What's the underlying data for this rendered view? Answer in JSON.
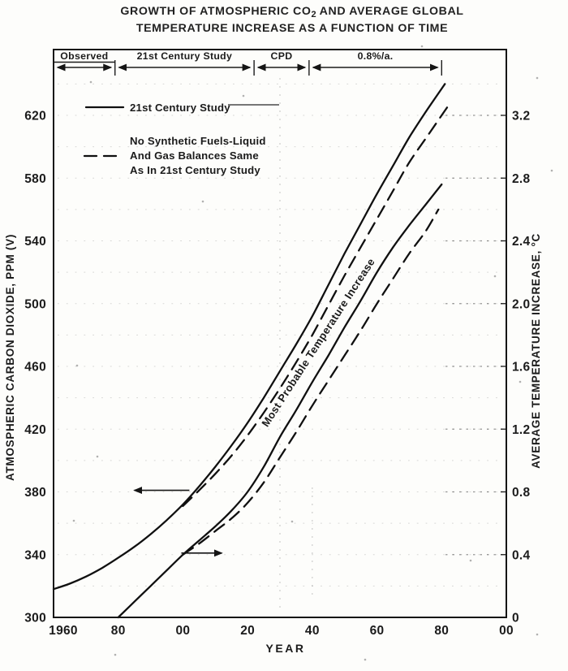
{
  "title": {
    "part1": "GROWTH OF ATMOSPHERIC CO",
    "sub": "2",
    "part2": " AND AVERAGE GLOBAL",
    "line2": "TEMPERATURE INCREASE AS A FUNCTION OF TIME"
  },
  "phase_bar": {
    "segments": [
      {
        "label": "Observed",
        "from": 1960,
        "to": 1979,
        "underline": true
      },
      {
        "label": "21st Century Study",
        "from": 1979,
        "to": 2022,
        "underline": false
      },
      {
        "label": "CPD",
        "from": 2022,
        "to": 2039,
        "underline": false
      },
      {
        "label": "0.8%/a.",
        "from": 2039,
        "to": 2080,
        "underline": false
      }
    ]
  },
  "legend": {
    "items": [
      {
        "line_style": "solid",
        "labels": [
          "21st Century Study"
        ]
      },
      {
        "line_style": "dashed",
        "labels": [
          "No Synthetic Fuels-Liquid",
          "And Gas Balances Same",
          "As In 21st Century Study"
        ]
      }
    ]
  },
  "chart_data": {
    "type": "line",
    "title": "GROWTH OF ATMOSPHERIC CO2 AND AVERAGE GLOBAL TEMPERATURE INCREASE AS A FUNCTION OF TIME",
    "grid": "dotted-scan",
    "x_axis": {
      "label": "YEAR",
      "min": 1960,
      "max": 2100,
      "tick_values": [
        1960,
        1980,
        2000,
        2020,
        2040,
        2060,
        2080,
        2100
      ],
      "tick_labels": [
        "1960",
        "80",
        "00",
        "20",
        "40",
        "60",
        "80",
        "00"
      ]
    },
    "y_axis_left": {
      "label": "ATMOSPHERIC CARBON DIOXIDE, PPM (V)",
      "min": 300,
      "max": 660,
      "tick_values": [
        300,
        340,
        380,
        420,
        460,
        500,
        540,
        580,
        620
      ]
    },
    "y_axis_right": {
      "label": "AVERAGE TEMPERATURE INCREASE, °C",
      "min": 0,
      "max": 3.6,
      "tick_values": [
        0,
        0.4,
        0.8,
        1.2,
        1.6,
        2.0,
        2.4,
        2.8,
        3.2
      ]
    },
    "series": [
      {
        "name": "Atmospheric CO2 — 21st Century Study",
        "axis": "left",
        "style": "solid",
        "points": [
          [
            1960,
            318
          ],
          [
            1965,
            321.5
          ],
          [
            1970,
            326
          ],
          [
            1975,
            331.5
          ],
          [
            1980,
            338
          ],
          [
            1985,
            345
          ],
          [
            1990,
            353
          ],
          [
            1995,
            362
          ],
          [
            2000,
            372
          ],
          [
            2005,
            383.5
          ],
          [
            2010,
            396
          ],
          [
            2015,
            409.5
          ],
          [
            2020,
            424
          ],
          [
            2025,
            440
          ],
          [
            2030,
            457
          ],
          [
            2035,
            474
          ],
          [
            2040,
            492
          ],
          [
            2045,
            512
          ],
          [
            2050,
            532
          ],
          [
            2055,
            551
          ],
          [
            2060,
            570
          ],
          [
            2065,
            588
          ],
          [
            2070,
            606
          ],
          [
            2075,
            622
          ],
          [
            2081,
            640
          ]
        ]
      },
      {
        "name": "Atmospheric CO2 — No Synthetic Fuels, Liquid And Gas Balances Same",
        "axis": "left",
        "style": "dashed",
        "points": [
          [
            2000,
            371
          ],
          [
            2005,
            381
          ],
          [
            2010,
            391.5
          ],
          [
            2015,
            403
          ],
          [
            2020,
            416
          ],
          [
            2025,
            430.5
          ],
          [
            2030,
            446
          ],
          [
            2035,
            462.5
          ],
          [
            2040,
            480
          ],
          [
            2045,
            499
          ],
          [
            2050,
            518
          ],
          [
            2055,
            536
          ],
          [
            2060,
            554
          ],
          [
            2065,
            572
          ],
          [
            2070,
            590
          ],
          [
            2076,
            608
          ],
          [
            2082,
            626
          ]
        ]
      },
      {
        "name": "Temperature Increase — 21st Century Study",
        "axis": "right",
        "style": "solid",
        "points": [
          [
            1980,
            0
          ],
          [
            1985,
            0.1
          ],
          [
            1990,
            0.2
          ],
          [
            1995,
            0.3
          ],
          [
            2000,
            0.4
          ],
          [
            2005,
            0.49
          ],
          [
            2010,
            0.58
          ],
          [
            2015,
            0.68
          ],
          [
            2020,
            0.8
          ],
          [
            2025,
            0.96
          ],
          [
            2030,
            1.15
          ],
          [
            2035,
            1.32
          ],
          [
            2040,
            1.5
          ],
          [
            2045,
            1.67
          ],
          [
            2050,
            1.85
          ],
          [
            2055,
            2.02
          ],
          [
            2060,
            2.2
          ],
          [
            2065,
            2.36
          ],
          [
            2070,
            2.5
          ],
          [
            2075,
            2.63
          ],
          [
            2080,
            2.76
          ]
        ]
      },
      {
        "name": "Temperature Increase — No Synthetic Fuels, Liquid And Gas Balances Same",
        "axis": "right",
        "style": "dashed",
        "points": [
          [
            2000,
            0.4
          ],
          [
            2005,
            0.47
          ],
          [
            2010,
            0.55
          ],
          [
            2015,
            0.63
          ],
          [
            2020,
            0.73
          ],
          [
            2025,
            0.86
          ],
          [
            2030,
            1.02
          ],
          [
            2035,
            1.18
          ],
          [
            2040,
            1.35
          ],
          [
            2045,
            1.51
          ],
          [
            2050,
            1.67
          ],
          [
            2055,
            1.83
          ],
          [
            2060,
            2.0
          ],
          [
            2065,
            2.16
          ],
          [
            2070,
            2.32
          ],
          [
            2075,
            2.46
          ],
          [
            2079,
            2.6
          ]
        ]
      }
    ],
    "annotations": {
      "curve_label": {
        "text": "Most Probable Temperature Increase",
        "year": 2043,
        "ppm": 474,
        "angle": -57
      },
      "arrows": [
        {
          "direction": "left",
          "axis_ref": "left",
          "ppm": 381,
          "year_tail": 2002,
          "year_head": 1985
        },
        {
          "direction": "right",
          "axis_ref": "right",
          "temp": 0.41,
          "year_tail": 1999.5,
          "year_head": 2012
        }
      ]
    }
  }
}
